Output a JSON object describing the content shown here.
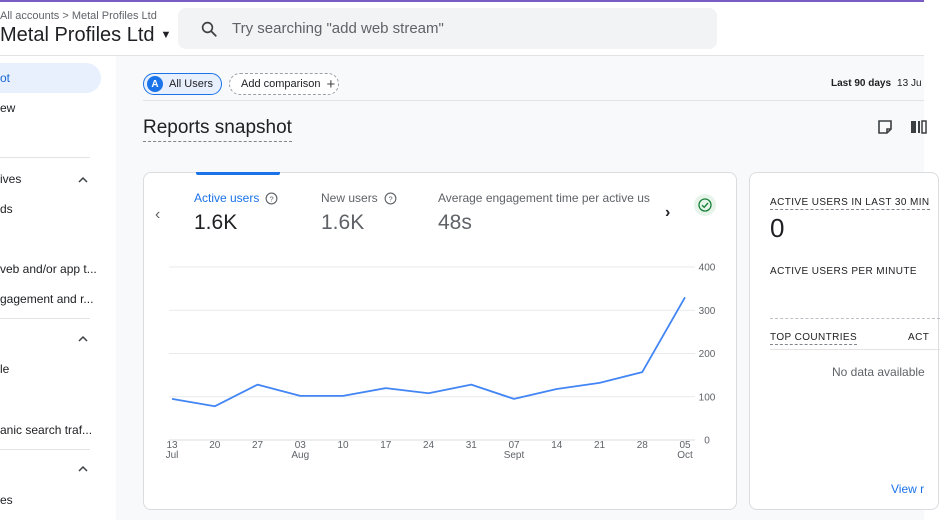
{
  "header": {
    "breadcrumb": "All accounts > Metal Profiles Ltd",
    "account_title": "Metal Profiles Ltd",
    "search_placeholder": "Try searching \"add web stream\""
  },
  "sidebar": {
    "items": [
      {
        "label": "ot"
      },
      {
        "label": "ew"
      },
      {
        "label": "ives"
      },
      {
        "label": "ds"
      },
      {
        "label": "veb and/or app t..."
      },
      {
        "label": "gagement and r..."
      },
      {
        "label": "le"
      },
      {
        "label": "anic search traf..."
      },
      {
        "label": "es"
      }
    ]
  },
  "toolbar": {
    "all_users_chip": "All Users",
    "avatar_letter": "A",
    "add_comparison": "Add comparison",
    "date_range_label": "Last 90 days",
    "date_range_value": "13 Ju"
  },
  "page": {
    "title": "Reports snapshot"
  },
  "metrics": [
    {
      "label": "Active users",
      "value": "1.6K"
    },
    {
      "label": "New users",
      "value": "1.6K"
    },
    {
      "label": "Average engagement time per active us",
      "value": "48s"
    }
  ],
  "chart_data": {
    "type": "line",
    "x": [
      "13 Jul",
      "20",
      "27",
      "03 Aug",
      "10",
      "17",
      "24",
      "31",
      "07 Sept",
      "14",
      "21",
      "28",
      "05 Oct"
    ],
    "tick_labels_top": [
      "13",
      "20",
      "27",
      "03",
      "10",
      "17",
      "24",
      "31",
      "07",
      "14",
      "21",
      "28",
      "05"
    ],
    "tick_labels_bottom": [
      "Jul",
      "",
      "",
      "Aug",
      "",
      "",
      "",
      "",
      "Sept",
      "",
      "",
      "",
      "Oct"
    ],
    "series": [
      {
        "values": [
          95,
          78,
          128,
          102,
          102,
          120,
          108,
          128,
          95,
          118,
          132,
          157,
          330
        ]
      }
    ],
    "ylim": [
      0,
      400
    ],
    "yticks": [
      "0",
      "100",
      "200",
      "300",
      "400"
    ],
    "color": "#4285f4",
    "grid": true
  },
  "realtime": {
    "active_last_30": "ACTIVE USERS IN LAST 30 MIN",
    "active_value": "0",
    "per_minute": "ACTIVE USERS PER MINUTE",
    "top_countries": "TOP COUNTRIES",
    "col_short": "ACT",
    "no_data": "No data available",
    "view_link": "View r"
  },
  "colors": {
    "accent": "#1a73e8",
    "line": "#4285f4",
    "check_green": "#188038"
  }
}
